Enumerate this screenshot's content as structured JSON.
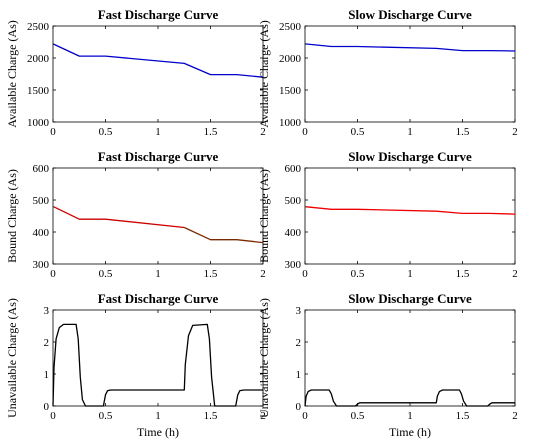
{
  "chart_data": [
    {
      "type": "line",
      "title": "Fast Discharge Curve",
      "xlabel": "",
      "ylabel": "Available Charge (As)",
      "xlim": [
        0,
        2
      ],
      "ylim": [
        1000,
        2500
      ],
      "xticks": [
        0,
        0.5,
        1,
        1.5,
        2
      ],
      "xtick_labels": [
        "0",
        "0.5",
        "1",
        "1.5",
        "2"
      ],
      "yticks": [
        1000,
        1500,
        2000,
        2500
      ],
      "ytick_labels": [
        "1000",
        "1500",
        "2000",
        "2500"
      ],
      "grid": false,
      "series": [
        {
          "color": "#0000cc",
          "x": [
            0,
            0.25,
            0.5,
            1.25,
            1.5,
            1.75,
            2
          ],
          "y": [
            2220,
            2030,
            2030,
            1915,
            1740,
            1740,
            1700
          ]
        }
      ]
    },
    {
      "type": "line",
      "title": "Slow Discharge Curve",
      "xlabel": "",
      "ylabel": "Available Charge (As)",
      "xlim": [
        0,
        2
      ],
      "ylim": [
        1000,
        2500
      ],
      "xticks": [
        0,
        0.5,
        1,
        1.5,
        2
      ],
      "xtick_labels": [
        "0",
        "0.5",
        "1",
        "1.5",
        "2"
      ],
      "yticks": [
        1000,
        1500,
        2000,
        2500
      ],
      "ytick_labels": [
        "1000",
        "1500",
        "2000",
        "2500"
      ],
      "grid": false,
      "series": [
        {
          "color": "#0000cc",
          "x": [
            0,
            0.25,
            0.5,
            1.25,
            1.5,
            1.75,
            2
          ],
          "y": [
            2220,
            2180,
            2180,
            2150,
            2115,
            2115,
            2110
          ]
        }
      ]
    },
    {
      "type": "line",
      "title": "Fast Discharge Curve",
      "xlabel": "",
      "ylabel": "Bound Charge (As)",
      "xlim": [
        0,
        2
      ],
      "ylim": [
        300,
        600
      ],
      "xticks": [
        0,
        0.5,
        1,
        1.5,
        2
      ],
      "xtick_labels": [
        "0",
        "0.5",
        "1",
        "1.5",
        "2"
      ],
      "yticks": [
        300,
        400,
        500,
        600
      ],
      "ytick_labels": [
        "300",
        "400",
        "500",
        "600"
      ],
      "grid": false,
      "series": [
        {
          "color": "#cc0000",
          "x": [
            0,
            0.25,
            0.5,
            1.25
          ],
          "y": [
            480,
            440,
            440,
            414
          ]
        },
        {
          "color": "#7a2a00",
          "x": [
            1.25,
            1.5,
            1.75,
            2
          ],
          "y": [
            414,
            376,
            376,
            367
          ]
        }
      ]
    },
    {
      "type": "line",
      "title": "Slow Discharge Curve",
      "xlabel": "",
      "ylabel": "Bound Charge (As)",
      "xlim": [
        0,
        2
      ],
      "ylim": [
        300,
        600
      ],
      "xticks": [
        0,
        0.5,
        1,
        1.5,
        2
      ],
      "xtick_labels": [
        "0",
        "0.5",
        "1",
        "1.5",
        "2"
      ],
      "yticks": [
        300,
        400,
        500,
        600
      ],
      "ytick_labels": [
        "300",
        "400",
        "500",
        "600"
      ],
      "grid": false,
      "series": [
        {
          "color": "#ee0000",
          "x": [
            0,
            0.25,
            0.5,
            1.25,
            1.5,
            1.75,
            2
          ],
          "y": [
            479,
            471,
            471,
            465,
            458,
            458,
            456
          ]
        }
      ]
    },
    {
      "type": "line",
      "title": "Fast Discharge Curve",
      "xlabel": "Time (h)",
      "ylabel": "Unavailable Charge (As)",
      "xlim": [
        0,
        2
      ],
      "ylim": [
        0,
        3
      ],
      "xticks": [
        0,
        0.5,
        1,
        1.5,
        2
      ],
      "xtick_labels": [
        "0",
        "0.5",
        "1",
        "1.5",
        "2"
      ],
      "yticks": [
        0,
        1,
        2,
        3
      ],
      "ytick_labels": [
        "0",
        "1",
        "2",
        "3"
      ],
      "grid": false,
      "series": [
        {
          "color": "#000000",
          "x": [
            0,
            0.01,
            0.03,
            0.06,
            0.1,
            0.22,
            0.24,
            0.26,
            0.28,
            0.31,
            0.48,
            0.5,
            0.52,
            0.55,
            1.25,
            1.26,
            1.29,
            1.33,
            1.47,
            1.49,
            1.51,
            1.54,
            1.74,
            1.76,
            1.78,
            1.82,
            2
          ],
          "y": [
            0,
            1.2,
            2.1,
            2.45,
            2.55,
            2.55,
            2.1,
            0.9,
            0.2,
            0,
            0,
            0.35,
            0.48,
            0.5,
            0.5,
            1.3,
            2.2,
            2.52,
            2.55,
            2.1,
            0.9,
            0,
            0,
            0.35,
            0.48,
            0.5,
            0.5
          ]
        }
      ]
    },
    {
      "type": "line",
      "title": "Slow Discharge Curve",
      "xlabel": "Time (h)",
      "ylabel": "Unavailable Charge (As)",
      "xlim": [
        0,
        2
      ],
      "ylim": [
        0,
        3
      ],
      "xticks": [
        0,
        0.5,
        1,
        1.5,
        2
      ],
      "xtick_labels": [
        "0",
        "0.5",
        "1",
        "1.5",
        "2"
      ],
      "yticks": [
        0,
        1,
        2,
        3
      ],
      "ytick_labels": [
        "0",
        "1",
        "2",
        "3"
      ],
      "grid": false,
      "series": [
        {
          "color": "#000000",
          "x": [
            0,
            0.01,
            0.03,
            0.06,
            0.23,
            0.25,
            0.27,
            0.3,
            0.48,
            0.5,
            0.52,
            0.55,
            1.25,
            1.26,
            1.28,
            1.31,
            1.47,
            1.49,
            1.51,
            1.54,
            1.74,
            1.76,
            1.78,
            1.82,
            2
          ],
          "y": [
            0,
            0.3,
            0.45,
            0.5,
            0.5,
            0.38,
            0.15,
            0,
            0,
            0.06,
            0.1,
            0.1,
            0.1,
            0.3,
            0.45,
            0.5,
            0.5,
            0.38,
            0.15,
            0,
            0,
            0.06,
            0.1,
            0.1,
            0.1
          ]
        }
      ]
    }
  ]
}
